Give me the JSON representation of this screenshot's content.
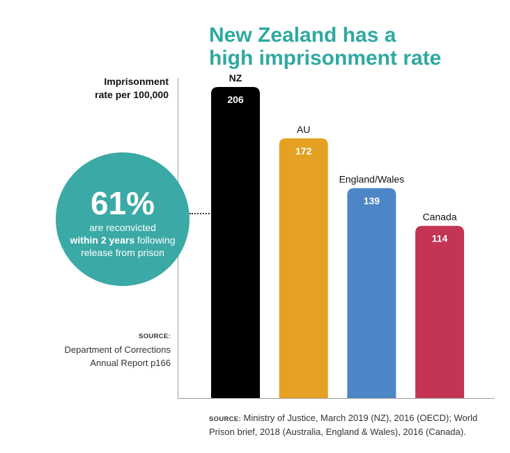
{
  "title_lines": [
    "New Zealand has a",
    "high imprisonment rate"
  ],
  "ylabel_lines": [
    "Imprisonment",
    "rate per 100,000"
  ],
  "callout": {
    "percent": "61%",
    "line1": "are reconvicted",
    "line2_bold": "within 2 years",
    "line2_rest": " following",
    "line3": "release from prison",
    "color": "#3ba9a6"
  },
  "source_left": {
    "label": "SOURCE:",
    "line1_rest": " Department of Corrections",
    "line2": "Annual Report p166"
  },
  "source_bottom": {
    "label": "SOURCE:",
    "text": " Ministry of Justice, March 2019 (NZ), 2016 (OECD); World Prison brief, 2018 (Australia, England & Wales), 2016 (Canada)."
  },
  "chart_data": {
    "type": "bar",
    "title": "New Zealand has a high imprisonment rate",
    "ylabel": "Imprisonment rate per 100,000",
    "categories": [
      "NZ",
      "AU",
      "England/Wales",
      "Canada"
    ],
    "values": [
      206,
      172,
      139,
      114
    ],
    "colors": [
      "#000000",
      "#e5a124",
      "#4d86c6",
      "#c43455"
    ],
    "category_label_bold": [
      true,
      false,
      false,
      false
    ],
    "grid": false,
    "legend": "none"
  }
}
